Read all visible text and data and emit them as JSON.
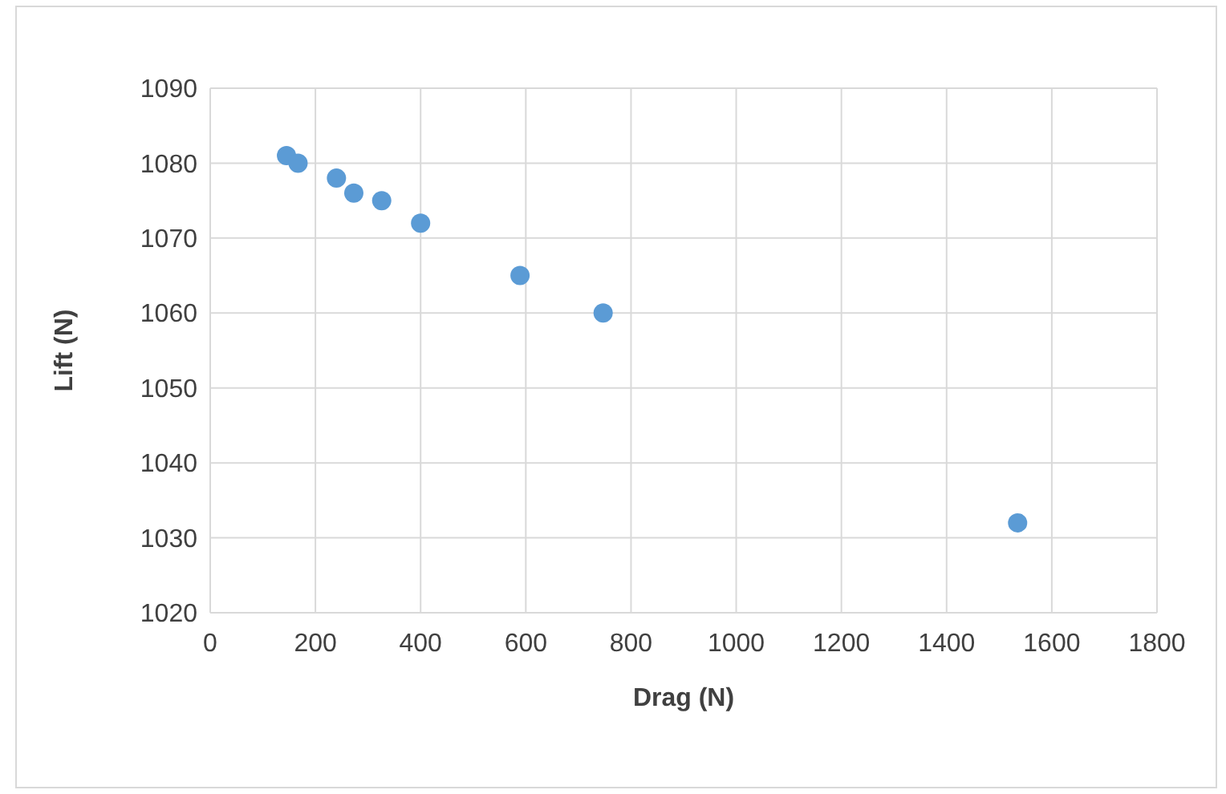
{
  "chart_data": {
    "type": "scatter",
    "xlabel": "Drag (N)",
    "ylabel": "Lift (N)",
    "x": [
      145,
      167,
      240,
      273,
      326,
      400,
      589,
      747,
      1535
    ],
    "series": [
      {
        "color": "#5b9bd5",
        "values": [
          1081,
          1080,
          1078,
          1076,
          1075,
          1072,
          1065,
          1060,
          1032
        ]
      }
    ],
    "xlim": [
      0,
      1800
    ],
    "xticks": [
      0,
      200,
      400,
      600,
      800,
      1000,
      1200,
      1400,
      1600,
      1800
    ],
    "ylim": [
      1020,
      1090
    ],
    "yticks": [
      1020,
      1030,
      1040,
      1050,
      1060,
      1070,
      1080,
      1090
    ],
    "grid": true,
    "marker": "circle"
  }
}
